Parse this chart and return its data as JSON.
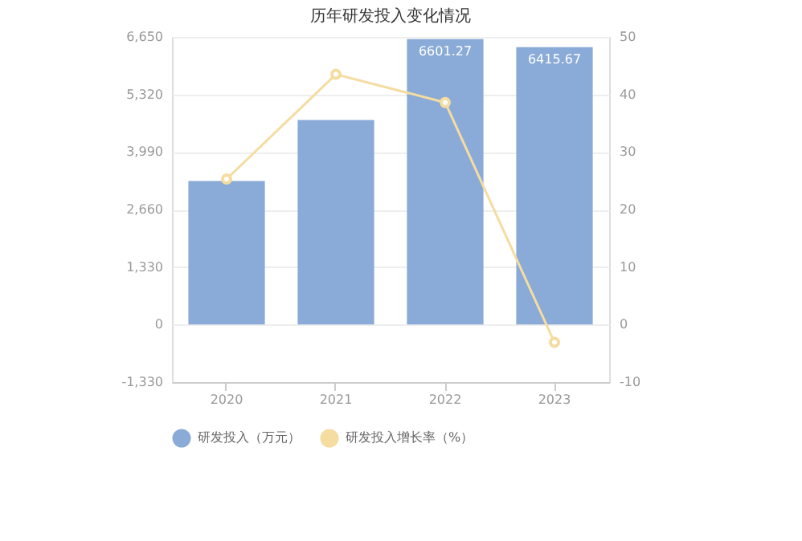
{
  "chart_data": {
    "type": "bar",
    "title": "历年研发投入变化情况",
    "categories": [
      "2020",
      "2021",
      "2022",
      "2023"
    ],
    "series": [
      {
        "name": "研发投入（万元）",
        "color": "#8aaad8",
        "values": [
          3320,
          4730,
          6601.27,
          6415.67
        ],
        "value_labels": [
          null,
          null,
          "6601.27",
          "6415.67"
        ]
      },
      {
        "name": "研发投入增长率（%）",
        "type": "line",
        "axis": "y2",
        "color": "#f5dca0",
        "marker": "circle",
        "values": [
          25.3,
          43.5,
          38.6,
          -3.1
        ]
      }
    ],
    "ylim": [
      -1330,
      6650
    ],
    "yticks": [
      {
        "value": -1330,
        "label": "-1,330"
      },
      0,
      {
        "value": 1330,
        "label": "1,330"
      },
      {
        "value": 2660,
        "label": "2,660"
      },
      {
        "value": 3990,
        "label": "3,990"
      },
      {
        "value": 5320,
        "label": "5,320"
      },
      {
        "value": 6650,
        "label": "6,650"
      }
    ],
    "y2lim": [
      -10,
      50
    ],
    "y2ticks": [
      -10,
      0,
      10,
      20,
      30,
      40,
      50
    ],
    "grid": "y",
    "legend": "bottom"
  }
}
